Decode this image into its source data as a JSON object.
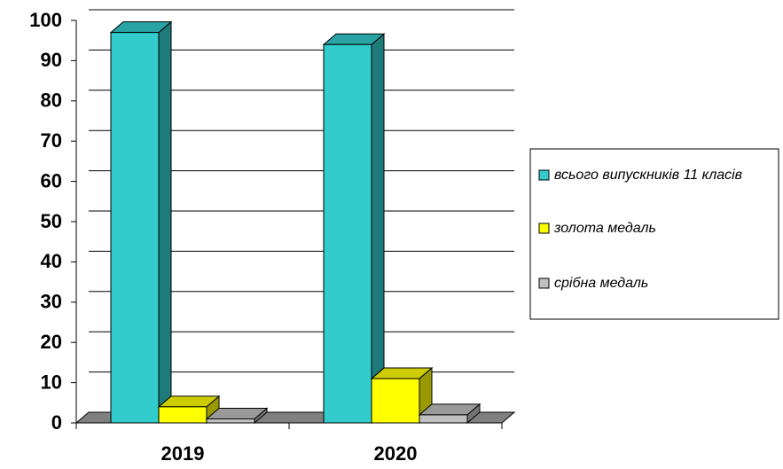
{
  "chart_data": {
    "type": "bar3d",
    "categories": [
      "2019",
      "2020"
    ],
    "series": [
      {
        "name": "всього випускників 11 класів",
        "color": "#33cccc",
        "values": [
          97,
          94
        ]
      },
      {
        "name": "золота медаль",
        "color": "#ffff00",
        "values": [
          4,
          11
        ]
      },
      {
        "name": "срібна медаль",
        "color": "#c0c0c0",
        "values": [
          1,
          2
        ]
      }
    ],
    "ylim": [
      0,
      100
    ],
    "yticks": [
      0,
      10,
      20,
      30,
      40,
      50,
      60,
      70,
      80,
      90,
      100
    ],
    "grid": true,
    "legend": "right"
  }
}
